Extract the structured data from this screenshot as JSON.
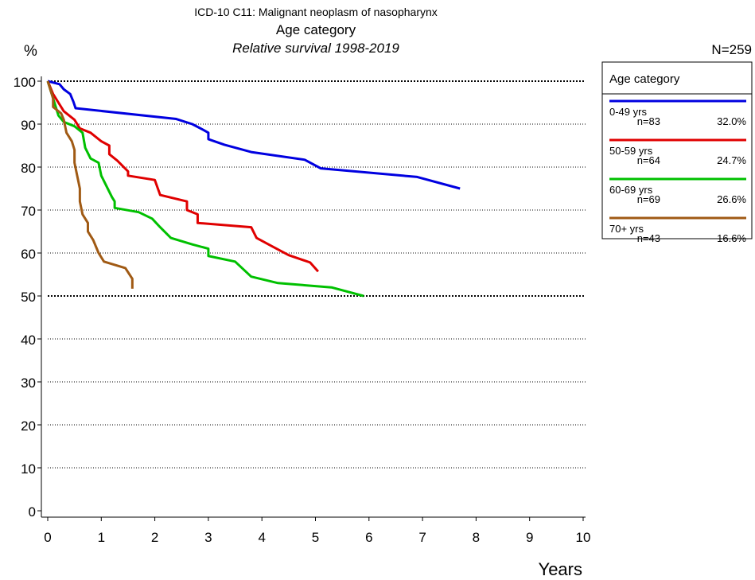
{
  "chart_data": {
    "type": "line",
    "title": "ICD-10 C11: Malignant neoplasm of nasopharynx",
    "subtitle": "Age category",
    "caption": "Relative survival 1998-2019",
    "y_label": "%",
    "x_label": "Years",
    "total_label": "N=259",
    "legend_title": "Age category",
    "xlim": [
      0,
      10
    ],
    "xticks": [
      0,
      1,
      2,
      3,
      4,
      5,
      6,
      7,
      8,
      9,
      10
    ],
    "ylim": [
      0,
      100
    ],
    "yticks": [
      0,
      10,
      20,
      30,
      40,
      50,
      60,
      70,
      80,
      90,
      100
    ],
    "bold_gridlines": [
      50,
      100
    ],
    "grid": true,
    "series": [
      {
        "name": "0-49 yrs",
        "n_label": "n=83",
        "share_label": "32.0%",
        "color": "#0000e0",
        "x": [
          0,
          0.22,
          0.3,
          0.42,
          0.48,
          0.52,
          2.4,
          2.7,
          2.9,
          3.0,
          3.0,
          3.3,
          3.8,
          4.8,
          5.1,
          6.9,
          7.7
        ],
        "values": [
          100,
          99.3,
          98.1,
          97,
          95.2,
          93.7,
          91.2,
          90,
          88.7,
          88,
          86.5,
          85.2,
          83.5,
          81.7,
          79.7,
          77.7,
          75
        ]
      },
      {
        "name": "50-59 yrs",
        "n_label": "n=64",
        "share_label": "24.7%",
        "color": "#e00000",
        "x": [
          0,
          0.1,
          0.2,
          0.3,
          0.5,
          0.6,
          0.8,
          1.0,
          1.15,
          1.15,
          1.3,
          1.5,
          1.5,
          2.0,
          2.1,
          2.6,
          2.6,
          2.8,
          2.8,
          3.8,
          3.9,
          4.2,
          4.5,
          4.9,
          5.05
        ],
        "values": [
          100,
          97,
          95,
          93,
          91,
          89,
          88,
          86,
          85,
          83,
          81.5,
          79,
          78,
          77,
          73.5,
          72,
          70,
          69,
          67,
          66,
          63.5,
          61.5,
          59.5,
          57.8,
          55.7
        ]
      },
      {
        "name": "60-69 yrs",
        "n_label": "n=69",
        "share_label": "26.6%",
        "color": "#00c000",
        "x": [
          0,
          0.1,
          0.2,
          0.3,
          0.5,
          0.65,
          0.7,
          0.8,
          0.95,
          1.0,
          1.1,
          1.2,
          1.25,
          1.25,
          1.7,
          1.95,
          2.1,
          2.3,
          2.7,
          3.0,
          3.0,
          3.5,
          3.8,
          4.3,
          5.3,
          5.9
        ],
        "values": [
          100,
          96,
          92,
          90.5,
          89.5,
          88,
          84.5,
          82,
          81,
          78,
          75.5,
          73,
          72,
          70.5,
          69.5,
          68,
          66,
          63.5,
          62,
          61,
          59.3,
          58,
          54.5,
          53,
          52,
          50
        ]
      },
      {
        "name": "70+ yrs",
        "n_label": "n=43",
        "share_label": "16.6%",
        "color": "#a05a14",
        "x": [
          0,
          0.05,
          0.1,
          0.1,
          0.15,
          0.25,
          0.3,
          0.35,
          0.45,
          0.5,
          0.5,
          0.55,
          0.6,
          0.6,
          0.65,
          0.75,
          0.75,
          0.85,
          0.95,
          1.05,
          1.45,
          1.58,
          1.58
        ],
        "values": [
          100,
          98,
          96,
          94,
          93.5,
          92.5,
          91,
          88,
          86,
          84,
          81,
          78,
          75,
          72,
          69,
          67,
          65,
          63,
          60,
          58,
          56.5,
          54,
          51.7
        ]
      }
    ]
  }
}
